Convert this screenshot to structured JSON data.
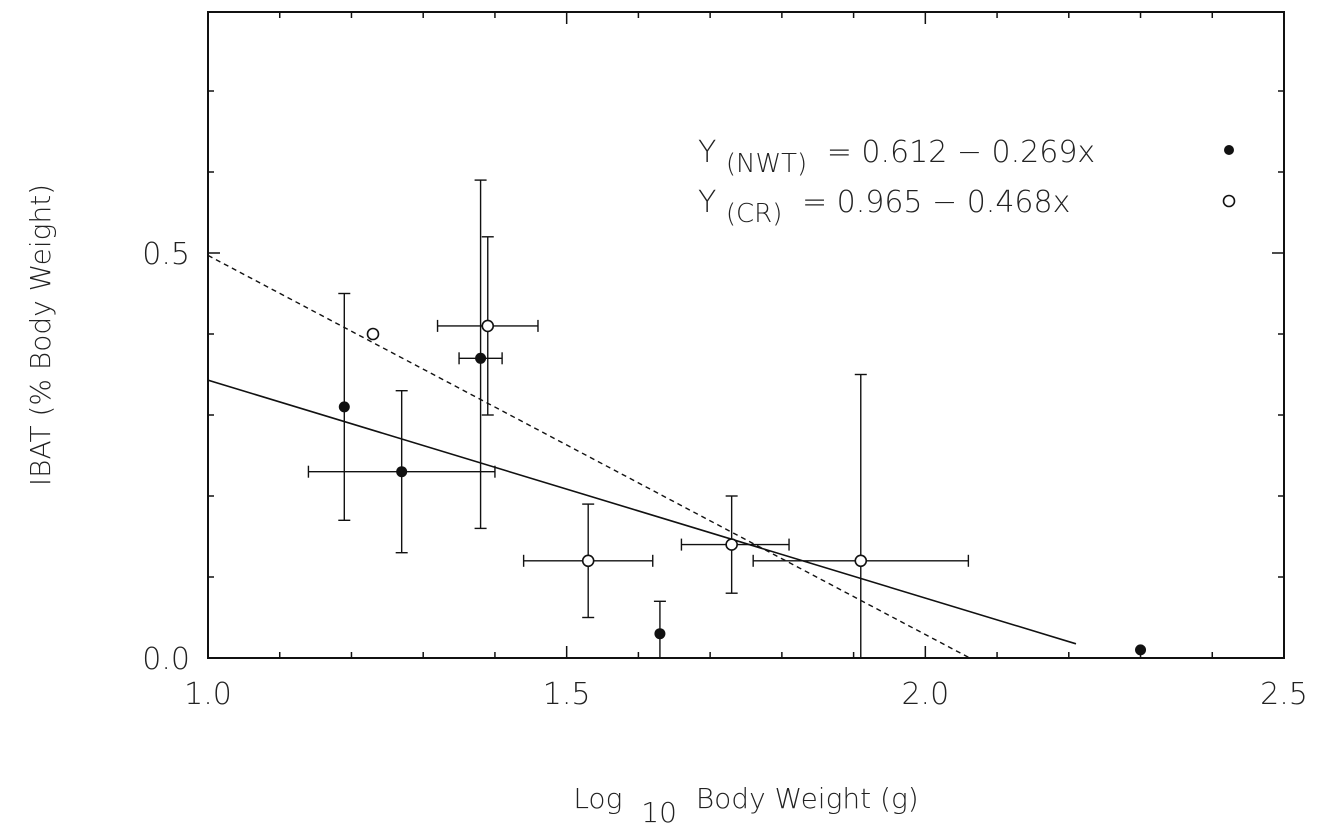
{
  "chart_data": {
    "type": "scatter",
    "title": "",
    "xlabel": {
      "prefix": "Log",
      "subscript": "10",
      "suffix": "Body Weight (g)"
    },
    "ylabel": "IBAT (% Body Weight)",
    "xlim": [
      1.0,
      2.5
    ],
    "ylim": [
      0.0,
      0.8
    ],
    "xticks": [
      1.0,
      1.5,
      2.0,
      2.5
    ],
    "xtick_labels": [
      "1.0",
      "1.5",
      "2.0",
      "2.5"
    ],
    "yticks": [
      0.0,
      0.5
    ],
    "ytick_labels": [
      "0.0",
      "0.5"
    ],
    "grid": false,
    "legend_position": "top-right",
    "series": [
      {
        "name": "NWT",
        "marker": "filled-circle",
        "points": [
          {
            "x": 1.19,
            "y": 0.31,
            "y_lo": 0.17,
            "y_hi": 0.45
          },
          {
            "x": 1.27,
            "y": 0.23,
            "y_lo": 0.13,
            "y_hi": 0.33,
            "x_lo": 1.14,
            "x_hi": 1.4
          },
          {
            "x": 1.38,
            "y": 0.37,
            "y_lo": 0.16,
            "y_hi": 0.59,
            "x_lo": 1.35,
            "x_hi": 1.41
          },
          {
            "x": 1.63,
            "y": 0.03,
            "y_lo": 0.0,
            "y_hi": 0.07
          },
          {
            "x": 2.3,
            "y": 0.01
          }
        ],
        "fit": {
          "intercept": 0.612,
          "slope": -0.269,
          "x_range": [
            1.0,
            2.21
          ],
          "style": "solid"
        }
      },
      {
        "name": "CR",
        "marker": "open-circle",
        "points": [
          {
            "x": 1.23,
            "y": 0.4
          },
          {
            "x": 1.39,
            "y": 0.41,
            "y_lo": 0.3,
            "y_hi": 0.52,
            "x_lo": 1.32,
            "x_hi": 1.46
          },
          {
            "x": 1.53,
            "y": 0.12,
            "y_lo": 0.05,
            "y_hi": 0.19,
            "x_lo": 1.44,
            "x_hi": 1.62
          },
          {
            "x": 1.73,
            "y": 0.14,
            "y_lo": 0.08,
            "y_hi": 0.2,
            "x_lo": 1.66,
            "x_hi": 1.81
          },
          {
            "x": 1.91,
            "y": 0.12,
            "y_lo": 0.0,
            "y_hi": 0.35,
            "x_lo": 1.76,
            "x_hi": 2.06
          }
        ],
        "fit": {
          "intercept": 0.965,
          "slope": -0.468,
          "x_range": [
            1.0,
            2.06
          ],
          "style": "dashed"
        }
      }
    ],
    "legend": [
      {
        "prefix": "Y",
        "subscript": "(NWT)",
        "equation": "= 0.612 − 0.269x",
        "marker": "filled-circle"
      },
      {
        "prefix": "Y",
        "subscript": "(CR)",
        "equation": "= 0.965 − 0.468x",
        "marker": "open-circle"
      }
    ]
  }
}
